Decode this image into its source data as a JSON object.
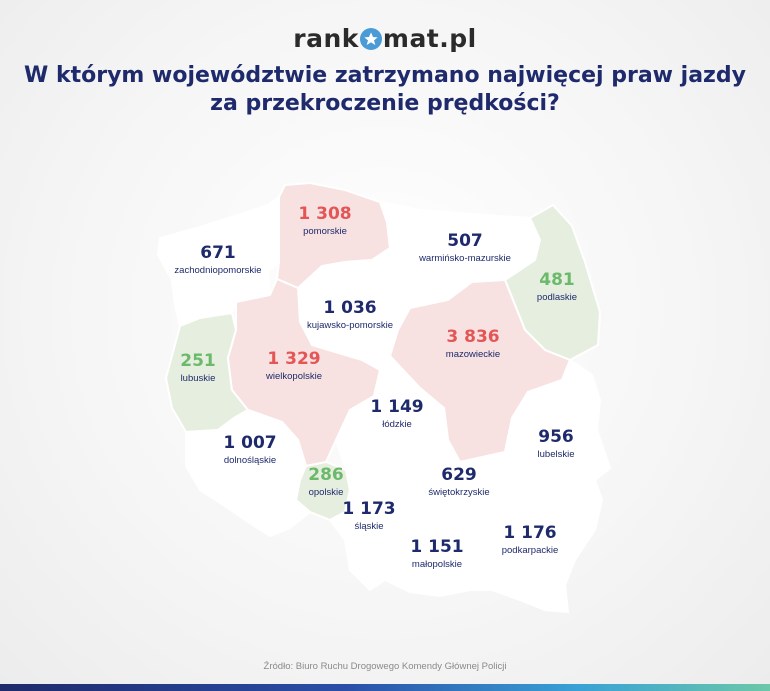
{
  "brand": {
    "logo_before": "rank",
    "logo_after": "mat.pl",
    "brand_color": "#4a9bd6"
  },
  "title": {
    "line1": "W którym województwie zatrzymano najwięcej praw jazdy",
    "line2": "za przekroczenie prędkości?"
  },
  "colors": {
    "high": "#e45656",
    "low": "#6bb96a",
    "neutral": "#1e2a6b",
    "high_fill": "#f7e1e1",
    "low_fill": "#e6efdf",
    "neutral_fill": "#ffffff"
  },
  "regions": [
    {
      "name": "pomorskie",
      "value": "1 308",
      "category": "high"
    },
    {
      "name": "zachodniopomorskie",
      "value": "671",
      "category": "neutral"
    },
    {
      "name": "warmińsko-mazurskie",
      "value": "507",
      "category": "neutral"
    },
    {
      "name": "podlaskie",
      "value": "481",
      "category": "low"
    },
    {
      "name": "kujawsko-pomorskie",
      "value": "1 036",
      "category": "neutral"
    },
    {
      "name": "mazowieckie",
      "value": "3 836",
      "category": "high"
    },
    {
      "name": "lubuskie",
      "value": "251",
      "category": "low"
    },
    {
      "name": "wielkopolskie",
      "value": "1 329",
      "category": "high"
    },
    {
      "name": "łódzkie",
      "value": "1 149",
      "category": "neutral"
    },
    {
      "name": "lubelskie",
      "value": "956",
      "category": "neutral"
    },
    {
      "name": "dolnośląskie",
      "value": "1 007",
      "category": "neutral"
    },
    {
      "name": "opolskie",
      "value": "286",
      "category": "low"
    },
    {
      "name": "świętokrzyskie",
      "value": "629",
      "category": "neutral"
    },
    {
      "name": "śląskie",
      "value": "1 173",
      "category": "neutral"
    },
    {
      "name": "małopolskie",
      "value": "1 151",
      "category": "neutral"
    },
    {
      "name": "podkarpackie",
      "value": "1 176",
      "category": "neutral"
    }
  ],
  "source": "Źródło: Biuro Ruchu Drogowego Komendy Głównej Policji"
}
